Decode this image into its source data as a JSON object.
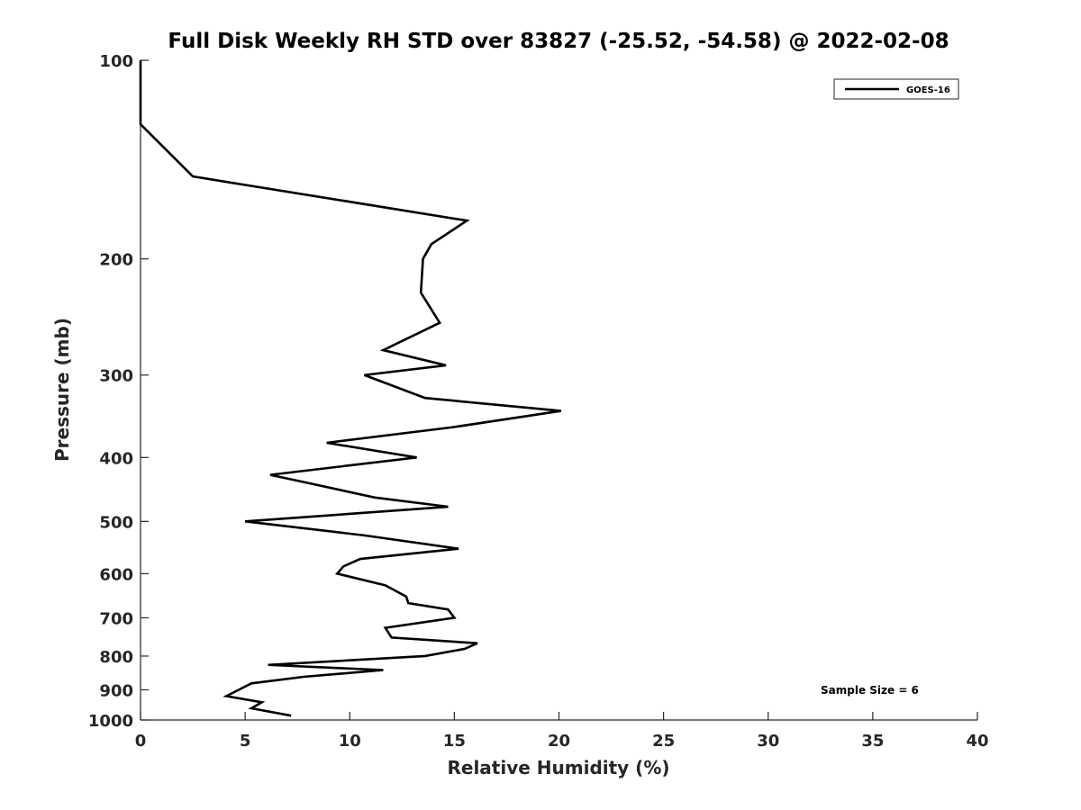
{
  "chart_data": {
    "type": "line",
    "title": "Full Disk Weekly RH STD over 83827 (-25.52, -54.58) @ 2022-02-08",
    "xlabel": "Relative Humidity (%)",
    "ylabel": "Pressure (mb)",
    "xlim": [
      0,
      40
    ],
    "ylim": [
      100,
      1000
    ],
    "y_scale": "log",
    "y_reversed": true,
    "x_ticks": [
      0,
      5,
      10,
      15,
      20,
      25,
      30,
      35,
      40
    ],
    "x_tick_labels": [
      "0",
      "5",
      "10",
      "15",
      "20",
      "25",
      "30",
      "35",
      "40"
    ],
    "y_ticks": [
      100,
      200,
      300,
      400,
      500,
      600,
      700,
      800,
      900,
      1000
    ],
    "y_tick_labels": [
      "100",
      "200",
      "300",
      "400",
      "500",
      "600",
      "700",
      "800",
      "900",
      "1000"
    ],
    "grid": false,
    "legend_position": "top-right",
    "annotation": "Sample Size = 6",
    "series": [
      {
        "name": "GOES-16",
        "color": "#000000",
        "points": [
          [
            0,
            100
          ],
          [
            0,
            125
          ],
          [
            2.5,
            150
          ],
          [
            15.6,
            175
          ],
          [
            13.9,
            190
          ],
          [
            13.5,
            200
          ],
          [
            13.4,
            225
          ],
          [
            14.3,
            250
          ],
          [
            11.6,
            275
          ],
          [
            14.6,
            290
          ],
          [
            10.7,
            300
          ],
          [
            13.6,
            325
          ],
          [
            20.1,
            340
          ],
          [
            14.9,
            360
          ],
          [
            8.9,
            380
          ],
          [
            13.2,
            400
          ],
          [
            6.2,
            425
          ],
          [
            8.4,
            440
          ],
          [
            11.2,
            460
          ],
          [
            14.7,
            475
          ],
          [
            5.0,
            500
          ],
          [
            10.7,
            525
          ],
          [
            15.2,
            550
          ],
          [
            10.5,
            570
          ],
          [
            9.7,
            585
          ],
          [
            9.4,
            600
          ],
          [
            11.7,
            625
          ],
          [
            12.7,
            650
          ],
          [
            12.8,
            665
          ],
          [
            14.7,
            680
          ],
          [
            15.0,
            700
          ],
          [
            11.7,
            725
          ],
          [
            12.0,
            750
          ],
          [
            16.1,
            765
          ],
          [
            15.5,
            780
          ],
          [
            13.6,
            800
          ],
          [
            6.1,
            825
          ],
          [
            11.6,
            840
          ],
          [
            7.8,
            860
          ],
          [
            5.3,
            880
          ],
          [
            4.1,
            920
          ],
          [
            5.8,
            940
          ],
          [
            5.3,
            960
          ],
          [
            7.2,
            985
          ]
        ]
      }
    ]
  }
}
